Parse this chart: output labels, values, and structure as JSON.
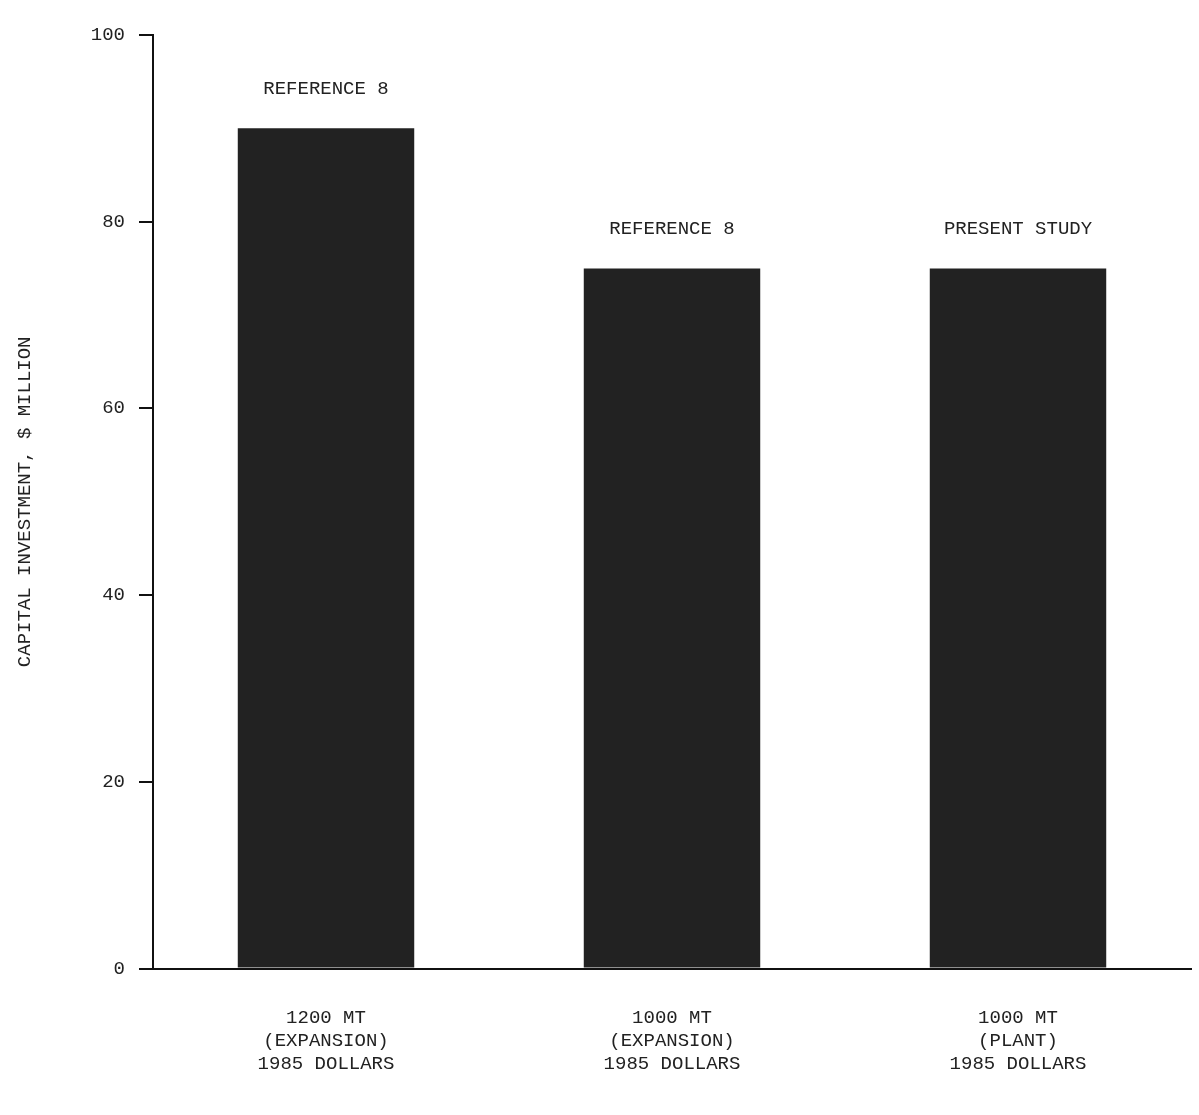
{
  "chart_data": {
    "type": "bar",
    "ylabel": "CAPITAL INVESTMENT, $ MILLION",
    "categories": [
      "1200 MT\n(EXPANSION)\n1985 DOLLARS",
      "1000 MT\n(EXPANSION)\n1985 DOLLARS",
      "1000 MT\n(PLANT)\n1985 DOLLARS"
    ],
    "values": [
      90,
      75,
      75
    ],
    "color": "#222222",
    "ylim": [
      0,
      100
    ],
    "yticks": [
      0,
      20,
      40,
      60,
      80,
      100
    ],
    "grid": false,
    "legend": false,
    "annotations": [
      {
        "text": "REFERENCE 8",
        "x": "1200 MT\n(EXPANSION)\n1985 DOLLARS",
        "y": 90
      },
      {
        "text": "REFERENCE 8",
        "x": "1000 MT\n(EXPANSION)\n1985 DOLLARS",
        "y": 75
      },
      {
        "text": "PRESENT STUDY",
        "x": "1000 MT\n(PLANT)\n1985 DOLLARS",
        "y": 75
      }
    ]
  }
}
